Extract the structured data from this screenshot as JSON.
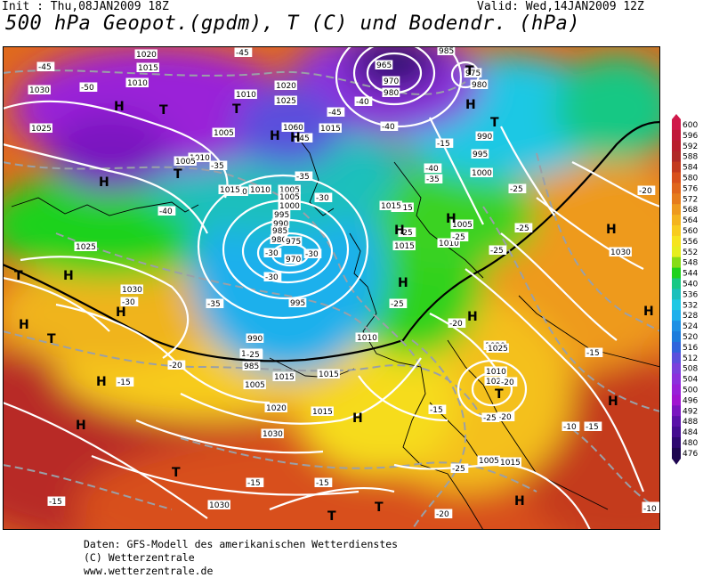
{
  "header": {
    "init": "Init : Thu,08JAN2009 18Z",
    "valid": "Valid: Wed,14JAN2009 12Z",
    "title": "500 hPa Geopot.(gpdm), T (C) und Bodendr. (hPa)"
  },
  "footer": {
    "line1": "Daten: GFS-Modell des amerikanischen Wetterdienstes",
    "line2": "(C) Wetterzentrale",
    "line3": "www.wetterzentrale.de"
  },
  "legend": {
    "values": [
      "600",
      "596",
      "592",
      "588",
      "584",
      "580",
      "576",
      "572",
      "568",
      "564",
      "560",
      "556",
      "552",
      "548",
      "544",
      "540",
      "536",
      "532",
      "528",
      "524",
      "520",
      "516",
      "512",
      "508",
      "504",
      "500",
      "496",
      "492",
      "488",
      "484",
      "480",
      "476"
    ],
    "colors": [
      "#d0184a",
      "#c01838",
      "#b81e2c",
      "#b02a26",
      "#c33a1e",
      "#d8501c",
      "#e0661c",
      "#e67c1c",
      "#ee9a1e",
      "#f4b41e",
      "#f8cc1e",
      "#f6e41e",
      "#e6ee1e",
      "#86dc16",
      "#1ed21c",
      "#18c884",
      "#1cc0bc",
      "#1ec8e4",
      "#1eb0ec",
      "#1e90e4",
      "#1c7cdc",
      "#3064dc",
      "#5a50dc",
      "#7a40dc",
      "#8c30dc",
      "#9820d8",
      "#a014d0",
      "#7a14c0",
      "#5a10a8",
      "#440c90",
      "#2e0870",
      "#1e0650"
    ]
  },
  "pressure_labels": [
    "1020",
    "1015",
    "1030",
    "1010",
    "1025",
    "1005",
    "1010",
    "1020",
    "1025",
    "1010",
    "1060",
    "1015",
    "1005",
    "1010",
    "1005",
    "1015",
    "1010",
    "1005",
    "1000",
    "995",
    "990",
    "985",
    "980",
    "975",
    "970",
    "965",
    "970",
    "980",
    "985",
    "975",
    "980",
    "990",
    "995",
    "1000",
    "1015",
    "1005",
    "1010",
    "1025",
    "1030",
    "995",
    "990",
    "985",
    "1000",
    "1005",
    "1015",
    "1010",
    "1015",
    "1020",
    "1025",
    "1030",
    "1015",
    "1020",
    "1015",
    "1010",
    "1025",
    "1015",
    "1030",
    "1005",
    "1015",
    "1030"
  ],
  "temp_labels": [
    "-45",
    "-50",
    "-45",
    "-40",
    "-45",
    "-40",
    "-45",
    "-40",
    "-35",
    "-35",
    "-30",
    "-35",
    "-30",
    "-30",
    "-25",
    "-30",
    "-40",
    "-35",
    "-30",
    "-25",
    "-25",
    "-25",
    "-25",
    "-20",
    "-25",
    "-20",
    "-25",
    "-15",
    "-15",
    "-20",
    "-20",
    "-15",
    "-15",
    "-10",
    "-25",
    "-15",
    "-20",
    "-15",
    "-10",
    "-20",
    "-15",
    "-25",
    "-15",
    "-10"
  ],
  "pressure_centers": [
    "H",
    "T",
    "T",
    "H",
    "H",
    "T",
    "H",
    "H",
    "T",
    "H",
    "T",
    "H",
    "H",
    "T",
    "H",
    "H",
    "T",
    "H",
    "T",
    "T",
    "H",
    "H",
    "H",
    "H",
    "T",
    "H",
    "H",
    "T",
    "H",
    "H"
  ]
}
